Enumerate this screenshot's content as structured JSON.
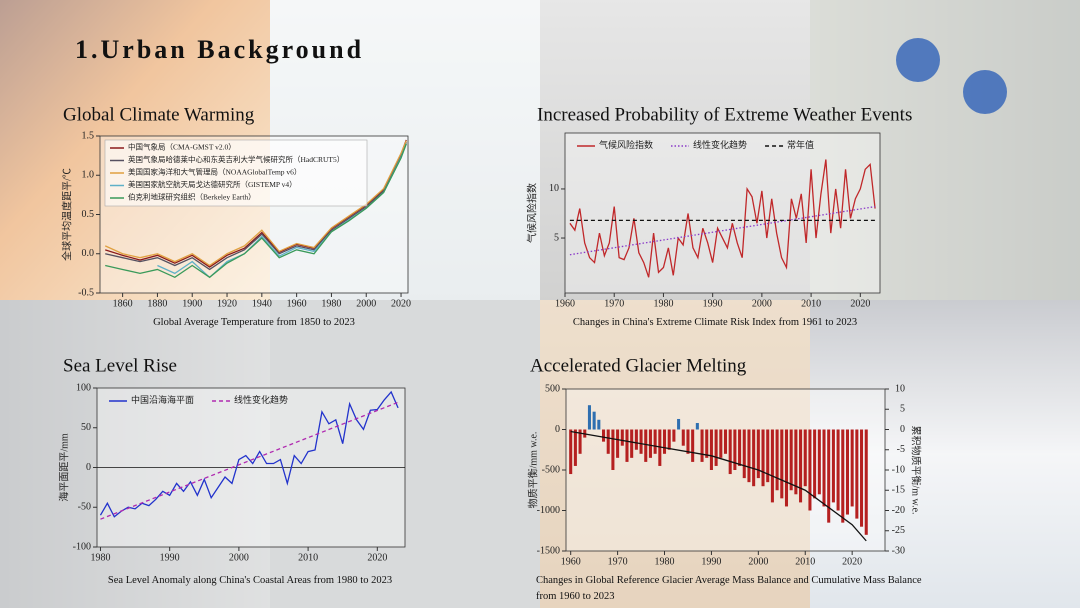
{
  "title": "1.Urban Background",
  "chart_data": [
    {
      "type": "line",
      "title": "Global Climate Warming",
      "caption": "Global Average Temperature from 1850 to 2023",
      "y_label": "全球平均温度距平/℃",
      "x": [
        1850,
        1860,
        1870,
        1880,
        1890,
        1900,
        1910,
        1920,
        1930,
        1940,
        1950,
        1960,
        1970,
        1980,
        1990,
        2000,
        2010,
        2020,
        2023
      ],
      "xlim": [
        1847,
        2024
      ],
      "xticks": [
        1860,
        1880,
        1900,
        1920,
        1940,
        1960,
        1980,
        2000,
        2020
      ],
      "ylim": [
        -0.5,
        1.5
      ],
      "yticks": [
        -0.5,
        {
          "value": 0,
          "label": "0.0"
        },
        {
          "value": 0.5,
          "label": "0.5"
        },
        {
          "value": 1,
          "label": "1.0"
        },
        {
          "value": 1.5,
          "label": "1.5"
        }
      ],
      "legend": "vertical",
      "series": [
        {
          "name": "中国气象局（CMA-GMST v2.0）",
          "color": "#8b1a1a",
          "style": "solid",
          "values": [
            0.05,
            -0.02,
            -0.08,
            -0.02,
            -0.12,
            -0.02,
            -0.17,
            -0.02,
            0.07,
            0.27,
            0.02,
            0.12,
            0.07,
            0.32,
            0.47,
            0.62,
            0.82,
            1.27,
            1.45
          ]
        },
        {
          "name": "英国气象局哈德莱中心和东英吉利大学气候研究所（HadCRUT5）",
          "color": "#555060",
          "style": "solid",
          "values": [
            0.0,
            -0.05,
            -0.1,
            -0.05,
            -0.15,
            -0.05,
            -0.2,
            -0.05,
            0.05,
            0.25,
            0.0,
            0.1,
            0.05,
            0.3,
            0.45,
            0.6,
            0.8,
            1.25,
            1.42
          ]
        },
        {
          "name": "美国国家海洋和大气管理局（NOAAGlobalTemp v6）",
          "color": "#e0a040",
          "style": "solid",
          "values": [
            0.1,
            0.0,
            -0.05,
            0.0,
            -0.1,
            0.0,
            -0.15,
            0.0,
            0.1,
            0.3,
            0.03,
            0.13,
            0.08,
            0.33,
            0.48,
            0.63,
            0.83,
            1.28,
            1.44
          ]
        },
        {
          "name": "美国国家航空航天局戈达德研究所（GISTEMP v4）",
          "color": "#5fb0c8",
          "style": "solid",
          "values": [
            null,
            null,
            null,
            -0.15,
            -0.25,
            -0.1,
            -0.3,
            -0.1,
            0.0,
            0.22,
            -0.03,
            0.08,
            0.03,
            0.28,
            0.43,
            0.58,
            0.78,
            1.23,
            1.4
          ]
        },
        {
          "name": "伯克利地球研究组织（Berkeley Earth）",
          "color": "#3a9a5a",
          "style": "solid",
          "values": [
            -0.15,
            -0.2,
            -0.25,
            -0.2,
            -0.3,
            -0.15,
            -0.3,
            -0.12,
            0.0,
            0.2,
            -0.05,
            0.05,
            0.0,
            0.28,
            0.42,
            0.58,
            0.78,
            1.22,
            1.4
          ]
        }
      ]
    },
    {
      "type": "line",
      "title": "Increased Probability of Extreme Weather Events",
      "caption": "Changes in China's Extreme Climate Risk Index from 1961 to 2023",
      "y_label": "气候风险指数",
      "x": [
        1961,
        1962,
        1963,
        1964,
        1965,
        1966,
        1967,
        1968,
        1969,
        1970,
        1971,
        1972,
        1973,
        1974,
        1975,
        1976,
        1977,
        1978,
        1979,
        1980,
        1981,
        1982,
        1983,
        1984,
        1985,
        1986,
        1987,
        1988,
        1989,
        1990,
        1991,
        1992,
        1993,
        1994,
        1995,
        1996,
        1997,
        1998,
        1999,
        2000,
        2001,
        2002,
        2003,
        2004,
        2005,
        2006,
        2007,
        2008,
        2009,
        2010,
        2011,
        2012,
        2013,
        2014,
        2015,
        2016,
        2017,
        2018,
        2019,
        2020,
        2021,
        2022,
        2023
      ],
      "xlim": [
        1960,
        2024
      ],
      "xticks": [
        1960,
        1970,
        1980,
        1990,
        2000,
        2010,
        2020
      ],
      "ylim": [
        -0.6,
        15.7
      ],
      "yticks": [
        5,
        10
      ],
      "legend": "horizontal",
      "series": [
        {
          "name": "气候风险指数",
          "color": "#c0282a",
          "style": "solid",
          "values": [
            6.5,
            5.8,
            8,
            4.5,
            3,
            2.5,
            5.5,
            3.2,
            4.5,
            8.2,
            3,
            2.8,
            4,
            7,
            3.5,
            2.5,
            1,
            5.5,
            1.5,
            2,
            4,
            1.2,
            5,
            4.3,
            7.5,
            4,
            3,
            6,
            4.5,
            2.5,
            6,
            5,
            4,
            6.5,
            4.5,
            3,
            10,
            9.2,
            6.5,
            9.8,
            5,
            9,
            5.5,
            3,
            2,
            9,
            7,
            9.5,
            4.5,
            12,
            5,
            9.5,
            13,
            5.5,
            10,
            6,
            12,
            7,
            9,
            10,
            12,
            12.5,
            8
          ]
        },
        {
          "name": "线性变化趋势",
          "color": "#8a3ac8",
          "style": "dotted",
          "x": [
            1961,
            2023
          ],
          "values": [
            3.3,
            8.2
          ]
        },
        {
          "name": "常年值",
          "color": "#111111",
          "style": "dashed",
          "x": [
            1961,
            2023
          ],
          "values": [
            6.8,
            6.8
          ]
        }
      ]
    },
    {
      "type": "line",
      "title": "Sea Level Rise",
      "caption": "Sea Level Anomaly along China's Coastal Areas from 1980 to 2023",
      "y_label": "海平面距平/mm",
      "x": [
        1980,
        1981,
        1982,
        1983,
        1984,
        1985,
        1986,
        1987,
        1988,
        1989,
        1990,
        1991,
        1992,
        1993,
        1994,
        1995,
        1996,
        1997,
        1998,
        1999,
        2000,
        2001,
        2002,
        2003,
        2004,
        2005,
        2006,
        2007,
        2008,
        2009,
        2010,
        2011,
        2012,
        2013,
        2014,
        2015,
        2016,
        2017,
        2018,
        2019,
        2020,
        2021,
        2022,
        2023
      ],
      "xlim": [
        1979.5,
        2024
      ],
      "xticks": [
        1980,
        1990,
        2000,
        2010,
        2020
      ],
      "ylim": [
        -100,
        100
      ],
      "yticks": [
        -100,
        -50,
        0,
        50,
        100
      ],
      "zero_line": true,
      "legend": "horizontal",
      "series": [
        {
          "name": "中国沿海海平面",
          "color": "#2233cc",
          "style": "solid",
          "values": [
            -60,
            -45,
            -62,
            -55,
            -50,
            -52,
            -45,
            -48,
            -40,
            -30,
            -35,
            -20,
            -30,
            -18,
            -35,
            -15,
            -38,
            -25,
            -12,
            -20,
            10,
            15,
            5,
            20,
            5,
            5,
            10,
            -20,
            15,
            5,
            20,
            22,
            70,
            55,
            60,
            30,
            80,
            60,
            48,
            72,
            73,
            85,
            95,
            75
          ]
        },
        {
          "name": "线性变化趋势",
          "color": "#b02ab0",
          "style": "dashed",
          "x": [
            1980,
            2023
          ],
          "values": [
            -65,
            82
          ]
        }
      ]
    },
    {
      "type": "bar",
      "title": "Accelerated Glacier Melting",
      "caption": "Changes in Global Reference Glacier Average Mass Balance and Cumulative Mass Balance from 1960 to 2023",
      "y_label": "物质平衡/mm w.e.",
      "y2_label": "累积物质平衡/m w.e.",
      "x": [
        1960,
        1961,
        1962,
        1963,
        1964,
        1965,
        1966,
        1967,
        1968,
        1969,
        1970,
        1971,
        1972,
        1973,
        1974,
        1975,
        1976,
        1977,
        1978,
        1979,
        1980,
        1981,
        1982,
        1983,
        1984,
        1985,
        1986,
        1987,
        1988,
        1989,
        1990,
        1991,
        1992,
        1993,
        1994,
        1995,
        1996,
        1997,
        1998,
        1999,
        2000,
        2001,
        2002,
        2003,
        2004,
        2005,
        2006,
        2007,
        2008,
        2009,
        2010,
        2011,
        2012,
        2013,
        2014,
        2015,
        2016,
        2017,
        2018,
        2019,
        2020,
        2021,
        2022,
        2023
      ],
      "xlim": [
        1959,
        2027
      ],
      "xticks": [
        1960,
        1970,
        1980,
        1990,
        2000,
        2010,
        2020
      ],
      "ylim": [
        -1500,
        500
      ],
      "yticks": [
        -1500,
        -1000,
        -500,
        0,
        500
      ],
      "y2lim": [
        -30,
        10
      ],
      "y2ticks": [
        -30,
        -25,
        -20,
        -15,
        -10,
        -5,
        0,
        5,
        10
      ],
      "series": [
        {
          "positive_color": "#2f6fb0",
          "negative_color": "#b52020",
          "values": [
            -550,
            -450,
            -300,
            -100,
            300,
            220,
            120,
            -150,
            -300,
            -500,
            -350,
            -200,
            -400,
            -350,
            -250,
            -300,
            -400,
            -350,
            -300,
            -450,
            -300,
            -250,
            -150,
            130,
            -200,
            -300,
            -400,
            80,
            -400,
            -350,
            -500,
            -450,
            -350,
            -300,
            -550,
            -500,
            -450,
            -600,
            -650,
            -700,
            -600,
            -700,
            -650,
            -900,
            -750,
            -850,
            -950,
            -750,
            -800,
            -900,
            -700,
            -1000,
            -850,
            -800,
            -950,
            -1150,
            -900,
            -1000,
            -1150,
            -1050,
            -950,
            -1100,
            -1200,
            -1300
          ]
        },
        {
          "axis": "y2",
          "color": "#111111",
          "style": "solid",
          "x": [
            1960,
            1970,
            1980,
            1990,
            2000,
            2010,
            2020,
            2023
          ],
          "values": [
            -0.5,
            -2.5,
            -4.5,
            -6.5,
            -10,
            -15,
            -23.5,
            -27.5
          ]
        }
      ]
    }
  ]
}
